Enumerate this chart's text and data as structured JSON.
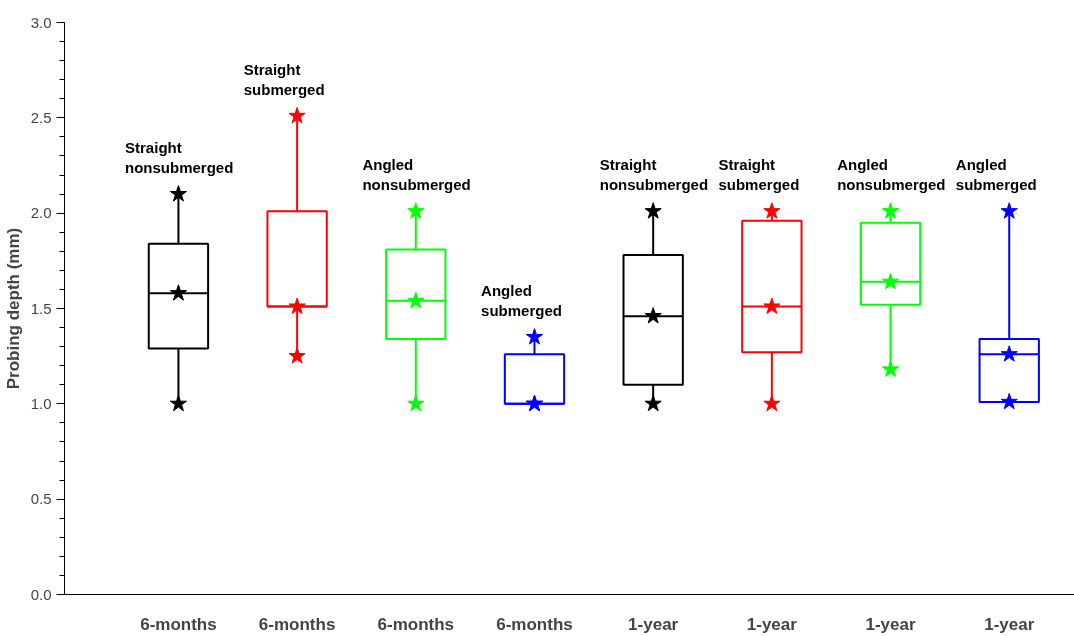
{
  "chart_data": {
    "type": "box",
    "ylabel": "Probing depth (mm)",
    "categories": [
      "6-months",
      "6-months",
      "6-months",
      "6-months",
      "1-year",
      "1-year",
      "1-year",
      "1-year"
    ],
    "colors": [
      "#000000",
      "#ff0000",
      "#00ff00",
      "#0000ff",
      "#000000",
      "#ff0000",
      "#00ff00",
      "#0000ff"
    ],
    "boxes": [
      {
        "low": 1.0,
        "q1": 1.29,
        "median": 1.58,
        "q3": 1.84,
        "high": 2.1
      },
      {
        "low": 1.25,
        "q1": 1.51,
        "median": 1.51,
        "q3": 2.01,
        "high": 2.51
      },
      {
        "low": 1.0,
        "q1": 1.34,
        "median": 1.54,
        "q3": 1.81,
        "high": 2.01
      },
      {
        "low": 1.0,
        "q1": 1.0,
        "median": 1.0,
        "q3": 1.26,
        "high": 1.35
      },
      {
        "low": 1.0,
        "q1": 1.1,
        "median": 1.46,
        "q3": 1.78,
        "high": 2.01
      },
      {
        "low": 1.0,
        "q1": 1.27,
        "median": 1.51,
        "q3": 1.96,
        "high": 2.01
      },
      {
        "low": 1.18,
        "q1": 1.52,
        "median": 1.64,
        "q3": 1.95,
        "high": 2.01
      },
      {
        "low": 1.01,
        "q1": 1.01,
        "median": 1.26,
        "q3": 1.34,
        "high": 2.01
      }
    ],
    "series": [
      {
        "type": "scatter",
        "colors": [
          "#000000",
          "#ff0000",
          "#00ff00",
          "#0000ff",
          "#000000",
          "#ff0000",
          "#00ff00",
          "#0000ff"
        ],
        "values": [
          1.0,
          1.25,
          1.0,
          1.0,
          1.0,
          1.0,
          1.18,
          1.01
        ]
      },
      {
        "type": "scatter",
        "colors": [
          "#000000",
          "#ff0000",
          "#00ff00",
          "#0000ff",
          "#000000",
          "#ff0000",
          "#00ff00",
          "#0000ff"
        ],
        "values": [
          1.58,
          1.51,
          1.54,
          1.0,
          1.46,
          1.51,
          1.64,
          1.26
        ]
      },
      {
        "type": "scatter",
        "colors": [
          "#000000",
          "#ff0000",
          "#00ff00",
          "#0000ff",
          "#000000",
          "#ff0000",
          "#00ff00",
          "#0000ff"
        ],
        "values": [
          2.1,
          2.51,
          2.01,
          1.35,
          2.01,
          2.01,
          2.01,
          2.01
        ]
      }
    ],
    "annotations": [
      "Straight\nnonsubmerged",
      "Straight\nsubmerged",
      "Angled\nnonsubmerged",
      "Angled\nsubmerged",
      "Straight\nnonsubmerged",
      "Straight\nsubmerged",
      "Angled\nnonsubmerged",
      "Angled\nsubmerged"
    ],
    "ylim": [
      0,
      3.0
    ],
    "yticks": [
      {
        "value": 0,
        "label": "0.0"
      },
      0.5,
      {
        "value": 1,
        "label": "1.0"
      },
      1.5,
      {
        "value": 2,
        "label": "2.0"
      },
      2.5,
      {
        "value": 3,
        "label": "3.0"
      }
    ],
    "marker": "star",
    "grid": false
  }
}
